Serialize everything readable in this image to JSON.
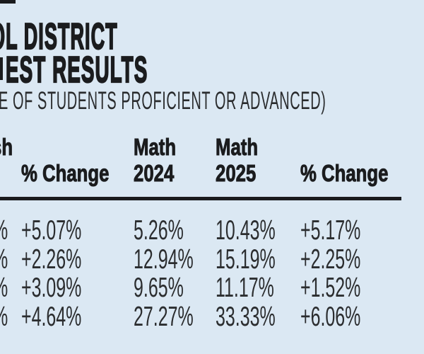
{
  "page": {
    "background": "#dbe8f3",
    "ink": "#1b1c1e"
  },
  "header": {
    "title_line1": "OL DISTRICT",
    "title_line2": "EST RESULTS",
    "subtitle": "E OF STUDENTS PROFICIENT OR ADVANCED)"
  },
  "chart_data": {
    "type": "table",
    "title": "OL DISTRICT / EST RESULTS (cropped)",
    "subtitle": "E OF STUDENTS PROFICIENT OR ADVANCED)",
    "columns": [
      "sh (cropped)",
      "% Change",
      "Math 2024",
      "Math 2025",
      "% Change"
    ],
    "rows": [
      [
        "%",
        "+5.07%",
        "5.26%",
        "10.43%",
        "+5.17%"
      ],
      [
        "%",
        "+2.26%",
        "12.94%",
        "15.19%",
        "+2.25%"
      ],
      [
        "%",
        "+3.09%",
        "9.65%",
        "11.17%",
        "+1.52%"
      ],
      [
        "%",
        "+4.64%",
        "27.27%",
        "33.33%",
        "+6.06%"
      ]
    ]
  },
  "table": {
    "col_fragment_line1": "sh",
    "col1_line2": "% Change",
    "col2_line1": "Math",
    "col2_line2": "2024",
    "col3_line1": "Math",
    "col3_line2": "2025",
    "col4_line2": "% Change",
    "rows": [
      {
        "frag": "%",
        "c1": "+5.07%",
        "c2": "5.26%",
        "c3": "10.43%",
        "c4": "+5.17%"
      },
      {
        "frag": "%",
        "c1": "+2.26%",
        "c2": "12.94%",
        "c3": "15.19%",
        "c4": "+2.25%"
      },
      {
        "frag": "%",
        "c1": "+3.09%",
        "c2": "9.65%",
        "c3": "11.17%",
        "c4": "+1.52%"
      },
      {
        "frag": "%",
        "c1": "+4.64%",
        "c2": "27.27%",
        "c3": "33.33%",
        "c4": "+6.06%"
      }
    ]
  }
}
